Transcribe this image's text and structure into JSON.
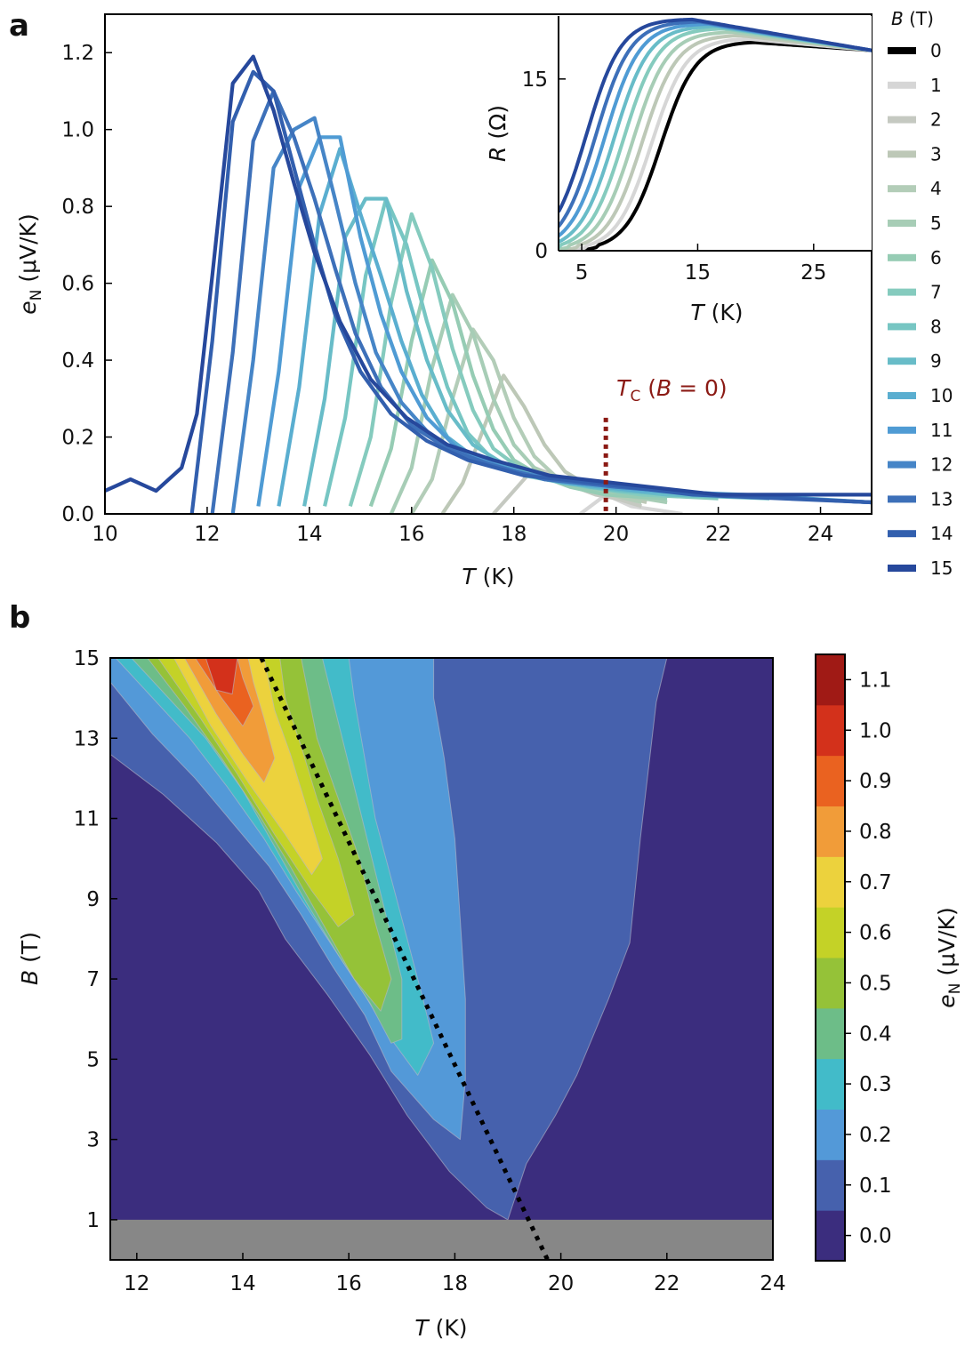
{
  "figure": {
    "panel_a_label": "a",
    "panel_b_label": "b"
  },
  "chart_data": [
    {
      "id": "panel-a-main",
      "type": "line",
      "title": "",
      "xlabel": "T (K)",
      "ylabel": "e_N (μV/K)",
      "xlim": [
        10,
        25
      ],
      "ylim": [
        0,
        1.3
      ],
      "xticks": [
        10,
        12,
        14,
        16,
        18,
        20,
        22,
        24
      ],
      "yticks": [
        0.0,
        0.2,
        0.4,
        0.6,
        0.8,
        1.0,
        1.2
      ],
      "legend_title": "B (T)",
      "legend_position": "right-outside",
      "annotation": {
        "text": "T_C (B = 0)",
        "x": 19.8,
        "y_range": [
          0,
          0.25
        ],
        "color": "#8b1a14"
      },
      "series": [
        {
          "name": "0",
          "color": "#000000",
          "x": [],
          "y": []
        },
        {
          "name": "1",
          "color": "#d6d6d6",
          "x": [
            19.3,
            19.8,
            20.3,
            20.8,
            21.3
          ],
          "y": [
            0.0,
            0.05,
            0.02,
            0.01,
            0.0
          ]
        },
        {
          "name": "2",
          "color": "#c5c9c1",
          "x": [
            17.6,
            18.0,
            18.4,
            18.8,
            19.2,
            19.6,
            20.0,
            20.5
          ],
          "y": [
            0.0,
            0.06,
            0.12,
            0.1,
            0.07,
            0.05,
            0.04,
            0.02
          ]
        },
        {
          "name": "3",
          "color": "#bdc8b7",
          "x": [
            16.6,
            17.0,
            17.4,
            17.8,
            18.2,
            18.6,
            19.0,
            19.5,
            20.0,
            20.6
          ],
          "y": [
            0.0,
            0.08,
            0.22,
            0.36,
            0.28,
            0.18,
            0.11,
            0.07,
            0.05,
            0.03
          ]
        },
        {
          "name": "4",
          "color": "#b3cdb8",
          "x": [
            16.0,
            16.4,
            16.8,
            17.2,
            17.6,
            18.0,
            18.4,
            18.8,
            19.3,
            19.9,
            20.5
          ],
          "y": [
            0.0,
            0.09,
            0.3,
            0.48,
            0.4,
            0.25,
            0.15,
            0.1,
            0.07,
            0.05,
            0.03
          ]
        },
        {
          "name": "5",
          "color": "#a7cdb6",
          "x": [
            15.6,
            16.0,
            16.4,
            16.8,
            17.2,
            17.6,
            18.0,
            18.4,
            18.9,
            19.5,
            20.1,
            21.0
          ],
          "y": [
            0.0,
            0.12,
            0.38,
            0.57,
            0.47,
            0.3,
            0.18,
            0.12,
            0.08,
            0.06,
            0.05,
            0.03
          ]
        },
        {
          "name": "6",
          "color": "#96ccb4",
          "x": [
            15.2,
            15.6,
            16.0,
            16.4,
            16.8,
            17.2,
            17.6,
            18.0,
            18.5,
            19.1,
            19.8,
            21.0
          ],
          "y": [
            0.02,
            0.17,
            0.45,
            0.66,
            0.55,
            0.36,
            0.22,
            0.14,
            0.1,
            0.07,
            0.05,
            0.04
          ]
        },
        {
          "name": "7",
          "color": "#85cbbe",
          "x": [
            14.8,
            15.2,
            15.6,
            16.0,
            16.4,
            16.8,
            17.2,
            17.6,
            18.1,
            18.7,
            19.4,
            20.5,
            22.0
          ],
          "y": [
            0.02,
            0.2,
            0.55,
            0.78,
            0.64,
            0.43,
            0.27,
            0.17,
            0.12,
            0.09,
            0.07,
            0.05,
            0.04
          ]
        },
        {
          "name": "8",
          "color": "#77c6c3",
          "x": [
            14.3,
            14.7,
            15.1,
            15.5,
            15.9,
            16.3,
            16.7,
            17.1,
            17.6,
            18.2,
            19.0,
            20.0,
            21.5
          ],
          "y": [
            0.02,
            0.25,
            0.62,
            0.82,
            0.7,
            0.5,
            0.33,
            0.21,
            0.14,
            0.1,
            0.08,
            0.06,
            0.05
          ]
        },
        {
          "name": "9",
          "color": "#68bcc8",
          "x": [
            13.9,
            14.3,
            14.7,
            15.1,
            15.5,
            15.9,
            16.3,
            16.7,
            17.2,
            17.8,
            18.5,
            19.5,
            21.0,
            23.0
          ],
          "y": [
            0.02,
            0.3,
            0.72,
            0.82,
            0.82,
            0.58,
            0.4,
            0.27,
            0.18,
            0.13,
            0.1,
            0.07,
            0.05,
            0.04
          ]
        },
        {
          "name": "10",
          "color": "#5aaed0",
          "x": [
            13.4,
            13.8,
            14.2,
            14.6,
            15.0,
            15.4,
            15.8,
            16.2,
            16.7,
            17.3,
            18.0,
            19.0,
            20.5,
            22.5,
            25.0
          ],
          "y": [
            0.02,
            0.33,
            0.78,
            0.95,
            0.78,
            0.62,
            0.45,
            0.31,
            0.2,
            0.14,
            0.11,
            0.08,
            0.06,
            0.05,
            0.03
          ]
        },
        {
          "name": "11",
          "color": "#4f9bd4",
          "x": [
            13.0,
            13.4,
            13.8,
            14.2,
            14.6,
            15.0,
            15.4,
            15.8,
            16.3,
            16.9,
            17.6,
            18.6,
            20.0,
            22.0,
            25.0
          ],
          "y": [
            0.02,
            0.37,
            0.85,
            0.98,
            0.98,
            0.72,
            0.52,
            0.37,
            0.25,
            0.17,
            0.13,
            0.09,
            0.07,
            0.05,
            0.03
          ]
        },
        {
          "name": "12",
          "color": "#4685c7",
          "x": [
            12.5,
            12.9,
            13.3,
            13.7,
            14.1,
            14.5,
            14.9,
            15.3,
            15.8,
            16.4,
            17.1,
            18.0,
            19.3,
            21.0,
            23.5,
            25.0
          ],
          "y": [
            0.0,
            0.4,
            0.9,
            1.0,
            1.03,
            0.82,
            0.6,
            0.42,
            0.29,
            0.2,
            0.15,
            0.11,
            0.08,
            0.06,
            0.04,
            0.03
          ]
        },
        {
          "name": "13",
          "color": "#3d70b9",
          "x": [
            12.1,
            12.5,
            12.9,
            13.3,
            13.7,
            14.1,
            14.5,
            14.9,
            15.4,
            16.0,
            16.7,
            17.5,
            18.6,
            20.0,
            22.0,
            25.0
          ],
          "y": [
            0.0,
            0.42,
            0.97,
            1.1,
            0.98,
            0.82,
            0.64,
            0.47,
            0.33,
            0.23,
            0.17,
            0.13,
            0.09,
            0.07,
            0.05,
            0.03
          ]
        },
        {
          "name": "14",
          "color": "#325fae",
          "x": [
            11.7,
            12.1,
            12.5,
            12.9,
            13.3,
            13.7,
            14.1,
            14.5,
            15.0,
            15.6,
            16.3,
            17.1,
            18.2,
            19.6,
            21.5,
            25.0
          ],
          "y": [
            0.0,
            0.45,
            1.02,
            1.15,
            1.1,
            0.9,
            0.7,
            0.52,
            0.37,
            0.26,
            0.19,
            0.14,
            0.1,
            0.08,
            0.05,
            0.03
          ]
        },
        {
          "name": "15",
          "color": "#26489c",
          "x": [
            10.0,
            10.5,
            11.0,
            11.5,
            11.8,
            12.1,
            12.5,
            12.9,
            13.3,
            13.7,
            14.1,
            14.6,
            15.2,
            15.9,
            16.7,
            17.6,
            18.7,
            20.0,
            22.0,
            25.0
          ],
          "y": [
            0.06,
            0.09,
            0.06,
            0.12,
            0.26,
            0.62,
            1.12,
            1.19,
            1.05,
            0.86,
            0.68,
            0.5,
            0.35,
            0.25,
            0.18,
            0.14,
            0.1,
            0.08,
            0.05,
            0.05
          ]
        }
      ]
    },
    {
      "id": "panel-a-inset",
      "type": "line",
      "xlabel": "T (K)",
      "ylabel": "R (Ω)",
      "xlim": [
        3,
        30
      ],
      "ylim": [
        0,
        20.5
      ],
      "xticks": [
        5,
        15,
        25
      ],
      "yticks": [
        0,
        15
      ],
      "curves": [
        {
          "B": "0",
          "color": "#000000",
          "tc": 11.8,
          "tmax": 19.8,
          "rmax": 18.2
        },
        {
          "B": "1",
          "color": "#d6d6d6",
          "tc": 11.0,
          "tmax": 19.3,
          "rmax": 18.5
        },
        {
          "B": "3",
          "color": "#bdc8b7",
          "tc": 10.2,
          "tmax": 18.6,
          "rmax": 18.8
        },
        {
          "B": "5",
          "color": "#a7cdb6",
          "tc": 9.4,
          "tmax": 18.0,
          "rmax": 19.1
        },
        {
          "B": "7",
          "color": "#85cbbe",
          "tc": 8.6,
          "tmax": 17.3,
          "rmax": 19.4
        },
        {
          "B": "9",
          "color": "#68bcc8",
          "tc": 7.8,
          "tmax": 16.6,
          "rmax": 19.6
        },
        {
          "B": "11",
          "color": "#4f9bd4",
          "tc": 7.0,
          "tmax": 15.9,
          "rmax": 19.8
        },
        {
          "B": "13",
          "color": "#3d70b9",
          "tc": 6.2,
          "tmax": 15.2,
          "rmax": 20.0
        },
        {
          "B": "15",
          "color": "#26489c",
          "tc": 5.4,
          "tmax": 14.5,
          "rmax": 20.2
        }
      ]
    },
    {
      "id": "panel-b-contour",
      "type": "heatmap",
      "xlabel": "T (K)",
      "ylabel": "B (T)",
      "xlim": [
        11.5,
        24
      ],
      "ylim": [
        0,
        15
      ],
      "xticks": [
        12,
        14,
        16,
        18,
        20,
        22,
        24
      ],
      "yticks": [
        1,
        3,
        5,
        7,
        9,
        11,
        13,
        15
      ],
      "masked_region": {
        "B_range": [
          0,
          1
        ],
        "color": "#878787"
      },
      "dotted_line": {
        "points": [
          [
            14.35,
            15
          ],
          [
            19.75,
            0
          ]
        ]
      },
      "colorbar": {
        "label": "e_N (μV/K)",
        "ticks": [
          "0.0",
          "0.1",
          "0.2",
          "0.3",
          "0.4",
          "0.5",
          "0.6",
          "0.7",
          "0.8",
          "0.9",
          "1.0",
          "1.1"
        ],
        "colors": [
          "#3b2d7e",
          "#4661ad",
          "#5399d8",
          "#42bbc9",
          "#6dbd88",
          "#95c238",
          "#c4d227",
          "#ecd23d",
          "#f19c39",
          "#ea6220",
          "#d3311b",
          "#a01a15"
        ]
      }
    }
  ]
}
